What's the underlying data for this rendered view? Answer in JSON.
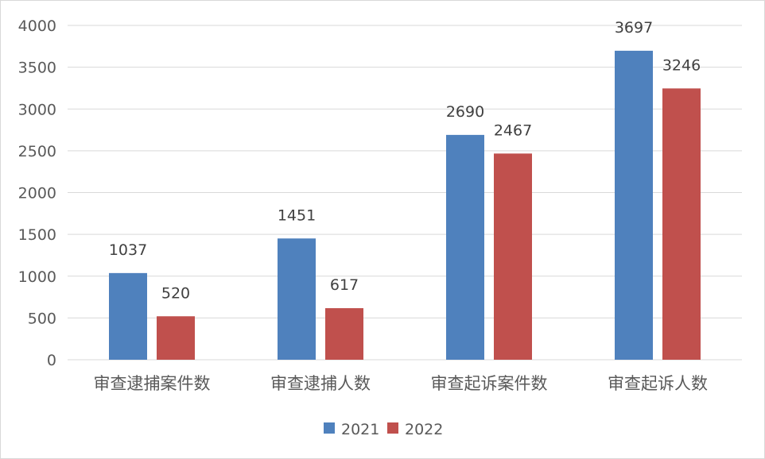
{
  "chart_data": {
    "type": "bar",
    "title": "",
    "xlabel": "",
    "ylabel": "",
    "categories": [
      "审查逮捕案件数",
      "审查逮捕人数",
      "审查起诉案件数",
      "审查起诉人数"
    ],
    "series": [
      {
        "name": "2021",
        "color": "#4f81bd",
        "values": [
          1037,
          1451,
          2690,
          3697
        ]
      },
      {
        "name": "2022",
        "color": "#c0504d",
        "values": [
          520,
          617,
          2467,
          3246
        ]
      }
    ],
    "ylim": [
      0,
      4000
    ],
    "yticks": [
      0,
      500,
      1000,
      1500,
      2000,
      2500,
      3000,
      3500,
      4000
    ],
    "grid": true,
    "legend_position": "bottom"
  }
}
